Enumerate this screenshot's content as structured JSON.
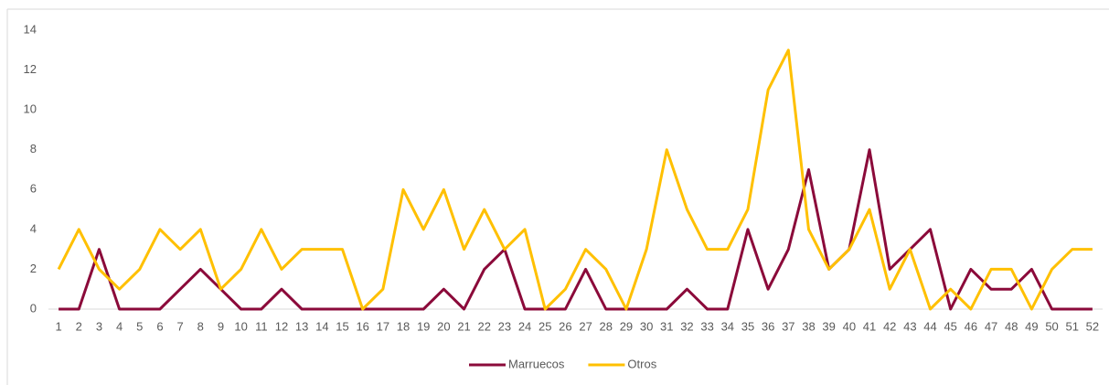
{
  "chart_data": {
    "type": "line",
    "categories": [
      "1",
      "2",
      "3",
      "4",
      "5",
      "6",
      "7",
      "8",
      "9",
      "10",
      "11",
      "12",
      "13",
      "14",
      "15",
      "16",
      "17",
      "18",
      "19",
      "20",
      "21",
      "22",
      "23",
      "24",
      "25",
      "26",
      "27",
      "28",
      "29",
      "30",
      "31",
      "32",
      "33",
      "34",
      "35",
      "36",
      "37",
      "38",
      "39",
      "40",
      "41",
      "42",
      "43",
      "44",
      "45",
      "46",
      "47",
      "48",
      "49",
      "50",
      "51",
      "52"
    ],
    "series": [
      {
        "name": "Marruecos",
        "color": "#8b0a3a",
        "values": [
          0,
          0,
          3,
          0,
          0,
          0,
          1,
          2,
          1,
          0,
          0,
          1,
          0,
          0,
          0,
          0,
          0,
          0,
          0,
          1,
          0,
          2,
          3,
          0,
          0,
          0,
          2,
          0,
          0,
          0,
          0,
          1,
          0,
          0,
          4,
          1,
          3,
          7,
          2,
          3,
          8,
          2,
          3,
          4,
          0,
          2,
          1,
          1,
          2,
          0,
          0,
          0
        ]
      },
      {
        "name": "Otros",
        "color": "#ffc000",
        "values": [
          2,
          4,
          2,
          1,
          2,
          4,
          3,
          4,
          1,
          2,
          4,
          2,
          3,
          3,
          3,
          0,
          1,
          6,
          4,
          6,
          3,
          5,
          3,
          4,
          0,
          1,
          3,
          2,
          0,
          3,
          8,
          5,
          3,
          3,
          5,
          11,
          13,
          4,
          2,
          3,
          5,
          1,
          3,
          0,
          1,
          0,
          2,
          2,
          0,
          2,
          3,
          3
        ]
      }
    ],
    "ylim": [
      0,
      14
    ],
    "yticks": [
      0,
      2,
      4,
      6,
      8,
      10,
      12,
      14
    ],
    "grid": false,
    "legend": "bottom"
  }
}
